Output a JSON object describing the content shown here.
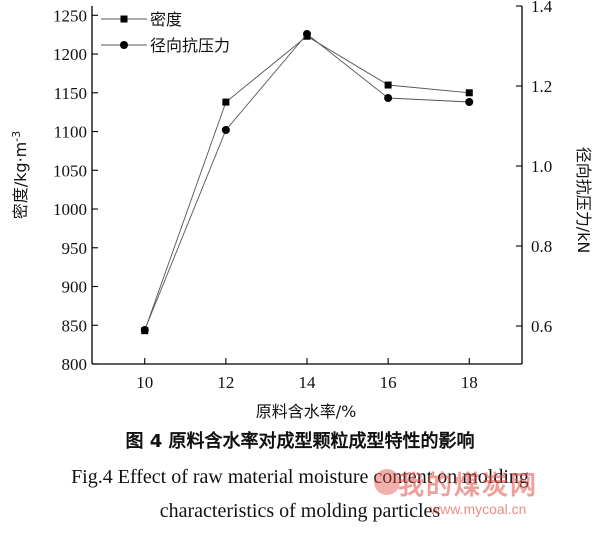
{
  "chart_data": {
    "type": "line",
    "x": [
      10,
      12,
      14,
      16,
      18
    ],
    "xlabel": "原料含水率/%",
    "xlim": [
      8.7,
      19.3
    ],
    "x_ticks": [
      10,
      12,
      14,
      16,
      18
    ],
    "ylabel_left": "密度/kg·m",
    "ylabel_left_superscript": "-3",
    "ylim_left": [
      800,
      1262
    ],
    "y_ticks_left": [
      800,
      850,
      900,
      950,
      1000,
      1050,
      1100,
      1150,
      1200,
      1250
    ],
    "ylabel_right": "径向抗压力/kN",
    "ylim_right": [
      0.505,
      1.4
    ],
    "y_ticks_right": [
      "0.6",
      "0.8",
      "1.0",
      "1.2",
      "1.4"
    ],
    "y_tick_values_right": [
      0.6,
      0.8,
      1.0,
      1.2,
      1.4
    ],
    "legend_position": "top-left",
    "series": [
      {
        "name": "密度",
        "axis": "left",
        "marker": "square",
        "values": [
          843,
          1138,
          1223,
          1160,
          1150
        ]
      },
      {
        "name": "径向抗压力",
        "axis": "right",
        "marker": "circle",
        "values": [
          0.59,
          1.09,
          1.33,
          1.17,
          1.16
        ]
      }
    ],
    "grid": false
  },
  "caption": {
    "cn": "图 4   原料含水率对成型颗粒成型特性的影响",
    "en_line1": "Fig.4 Effect of raw material moisture content on molding",
    "en_line2": "characteristics of molding particles"
  },
  "watermark": {
    "text": "我的煤炭网",
    "url": "www.mycoal.cn",
    "color": "#e15046"
  }
}
